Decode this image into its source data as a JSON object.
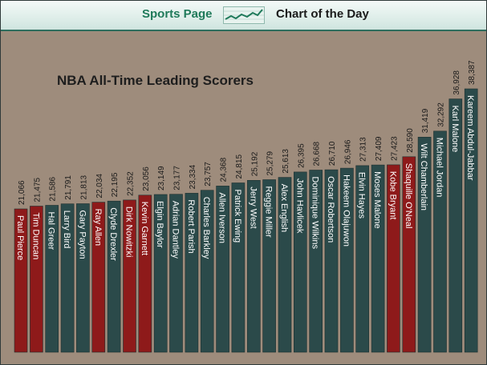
{
  "header": {
    "brand": "Sports Page",
    "tagline": "Chart of the Day",
    "logo_icon": "line-chart-icon"
  },
  "colors": {
    "background": "#9e8c7c",
    "bar_default": "#2b4a4a",
    "bar_highlight": "#8e1a1a",
    "header_green": "#1f7a5a"
  },
  "chart_data": {
    "type": "bar",
    "title": "NBA All-Time Leading Scorers",
    "categories": [
      "Paul Pierce",
      "Tim Duncan",
      "Hal Greer",
      "Larry Bird",
      "Gary Payton",
      "Ray Allen",
      "Clyde Drexler",
      "Dirk Nowitzki",
      "Kevin Garnett",
      "Elgin Baylor",
      "Adrian Dantley",
      "Robert Parish",
      "Charles Barkley",
      "Allen Iverson",
      "Patrick Ewing",
      "Jerry West",
      "Reggie Miller",
      "Alex English",
      "John Havlicek",
      "Dominique Wilkins",
      "Oscar Robertson",
      "Hakeem Olajuwon",
      "Elvin Hayes",
      "Moses Malone",
      "Kobe Bryant",
      "Shaquille O'Neal",
      "Wilt Chamberlain",
      "Michael Jordan",
      "Karl Malone",
      "Kareem Abdul-Jabbar"
    ],
    "values": [
      21066,
      21475,
      21586,
      21791,
      21813,
      22034,
      22195,
      22352,
      23056,
      23149,
      23177,
      23334,
      23757,
      24368,
      24815,
      25192,
      25279,
      25613,
      26395,
      26668,
      26710,
      26946,
      27313,
      27409,
      27423,
      28590,
      31419,
      32292,
      36928,
      38387
    ],
    "value_labels": [
      "21,066",
      "21,475",
      "21,586",
      "21,791",
      "21,813",
      "22,034",
      "22,195",
      "22,352",
      "23,056",
      "23,149",
      "23,177",
      "23,334",
      "23,757",
      "24,368",
      "24,815",
      "25,192",
      "25,279",
      "25,613",
      "26,395",
      "26,668",
      "26,710",
      "26,946",
      "27,313",
      "27,409",
      "27,423",
      "28,590",
      "31,419",
      "32,292",
      "36,928",
      "38,387"
    ],
    "highlighted": [
      "Paul Pierce",
      "Tim Duncan",
      "Ray Allen",
      "Dirk Nowitzki",
      "Kevin Garnett",
      "Kobe Bryant",
      "Shaquille O'Neal"
    ],
    "xlabel": "",
    "ylabel": "",
    "grid": false,
    "legend": "none"
  }
}
